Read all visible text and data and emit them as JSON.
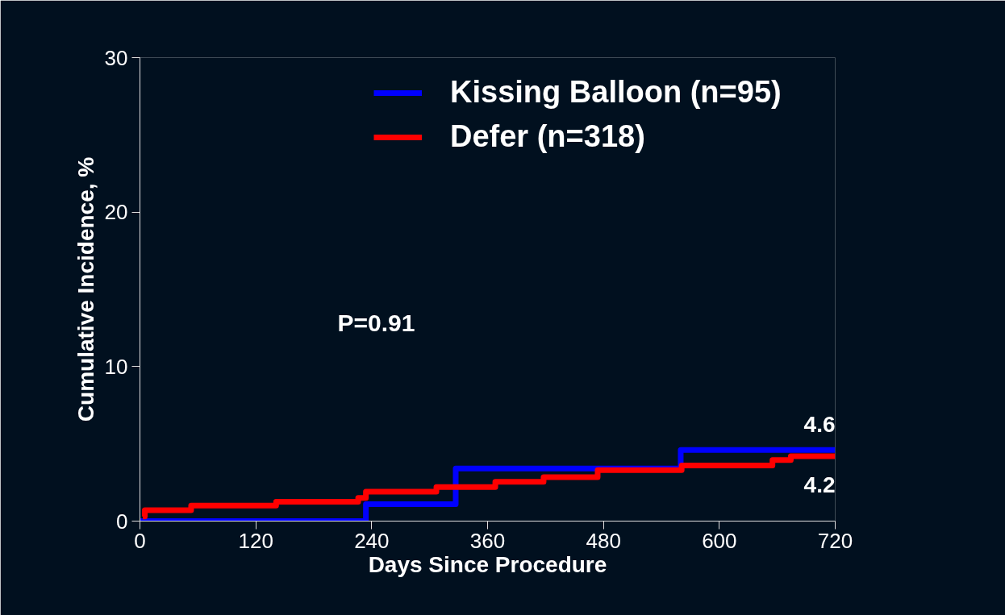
{
  "chart_data": {
    "type": "step",
    "xlabel": "Days Since Procedure",
    "ylabel": "Cumulative Incidence, %",
    "xlim": [
      0,
      720
    ],
    "xticks": [
      0,
      120,
      240,
      360,
      480,
      600,
      720
    ],
    "ylim": [
      0,
      30
    ],
    "yticks": [
      0,
      10,
      20,
      30
    ],
    "grid": false,
    "legend": "top right",
    "series": [
      {
        "name": "Kissing Balloon (n=95)",
        "color": "#0000ff",
        "x": [
          0,
          234,
          327,
          560,
          720
        ],
        "values": [
          0,
          1.1,
          3.4,
          4.6,
          4.6
        ]
      },
      {
        "name": "Defer (n=318)",
        "color": "#ff0000",
        "x": [
          3,
          5,
          53,
          141,
          226,
          234,
          307,
          368,
          418,
          474,
          561,
          655,
          674,
          720
        ],
        "values": [
          0.3,
          0.7,
          1.0,
          1.25,
          1.5,
          1.9,
          2.2,
          2.55,
          2.85,
          3.3,
          3.6,
          3.95,
          4.2,
          4.2
        ]
      }
    ],
    "annotations": [
      "P=0.91",
      {
        "text": "4.6",
        "x": 720,
        "y": 4.6
      },
      {
        "text": "4.2",
        "x": 720,
        "y": 4.2
      }
    ]
  }
}
